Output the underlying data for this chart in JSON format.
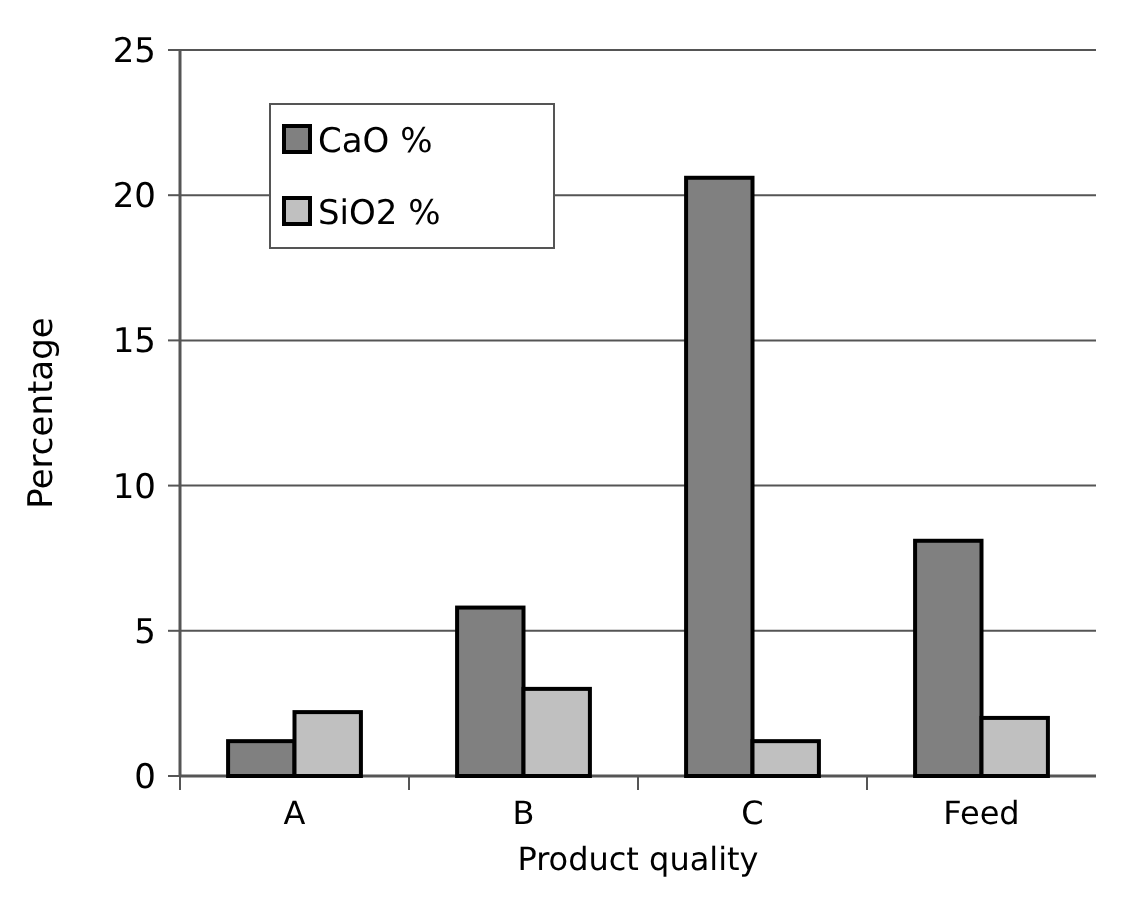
{
  "chart_data": {
    "type": "bar",
    "xlabel": "Product quality",
    "ylabel": "Percentage",
    "categories": [
      "A",
      "B",
      "C",
      "Feed"
    ],
    "series": [
      {
        "name": "CaO %",
        "color": "#808080",
        "values": [
          1.2,
          5.8,
          20.6,
          8.1
        ]
      },
      {
        "name": "SiO2 %",
        "color": "#c0c0c0",
        "values": [
          2.2,
          3.0,
          1.2,
          2.0
        ]
      }
    ],
    "ylim": [
      0,
      25
    ],
    "yticks": [
      0,
      5,
      10,
      15,
      20,
      25
    ],
    "grid": "y",
    "legend": "top left"
  }
}
